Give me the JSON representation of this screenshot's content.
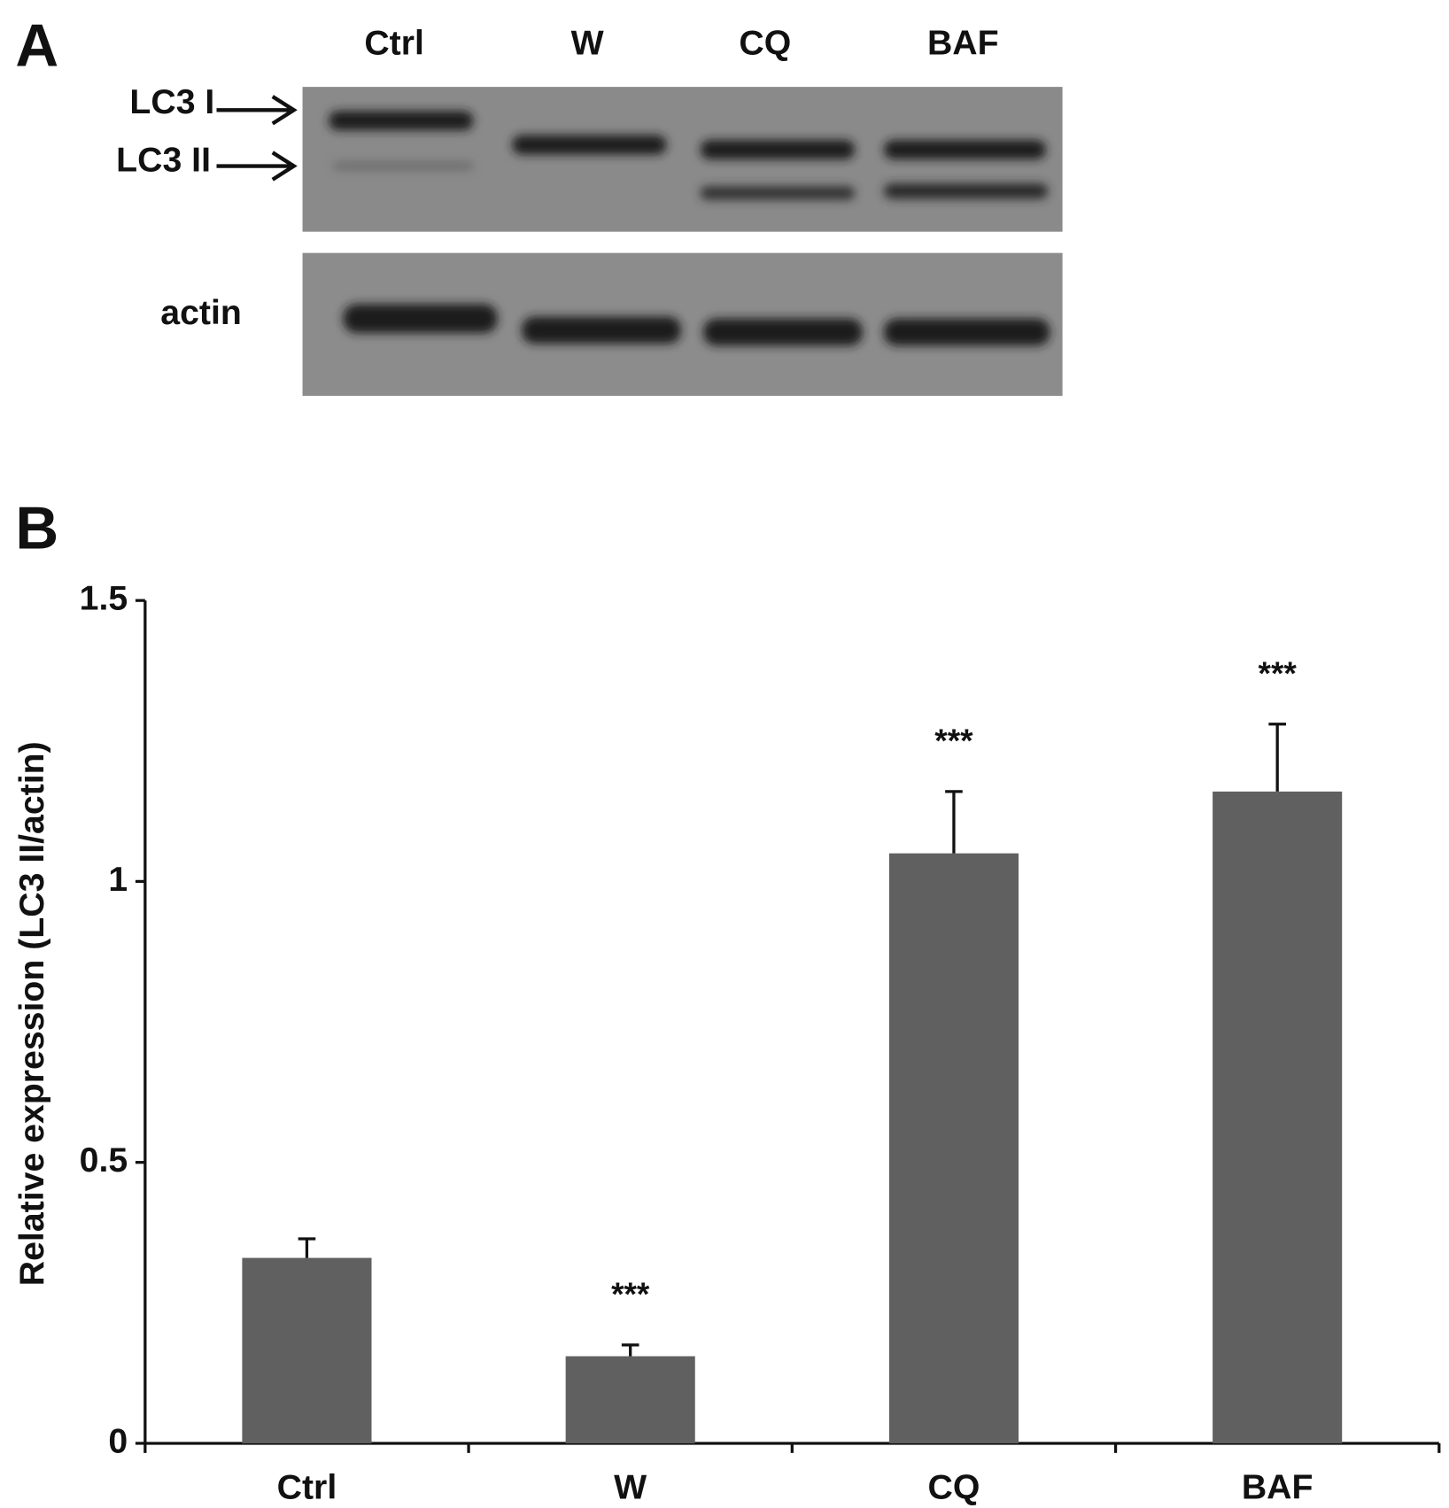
{
  "panel_a": {
    "label": "A",
    "lanes": [
      "Ctrl",
      "W",
      "CQ",
      "BAF"
    ],
    "band_labels": [
      "LC3 I",
      "LC3 II"
    ],
    "loading_label": "actin"
  },
  "chart_data": {
    "type": "bar",
    "panel_label": "B",
    "y_label": "Relative expression (LC3 II/actin)",
    "categories": [
      "Ctrl",
      "W",
      "CQ",
      "BAF"
    ],
    "values": [
      0.33,
      0.155,
      1.05,
      1.16
    ],
    "errors": [
      0.034,
      0.02,
      0.11,
      0.12
    ],
    "annotations": [
      null,
      "***",
      "***",
      "***"
    ],
    "color": "#606060",
    "ylim": [
      0,
      1.5
    ],
    "yticks": [
      0,
      0.5,
      1,
      1.5
    ],
    "grid": false
  }
}
